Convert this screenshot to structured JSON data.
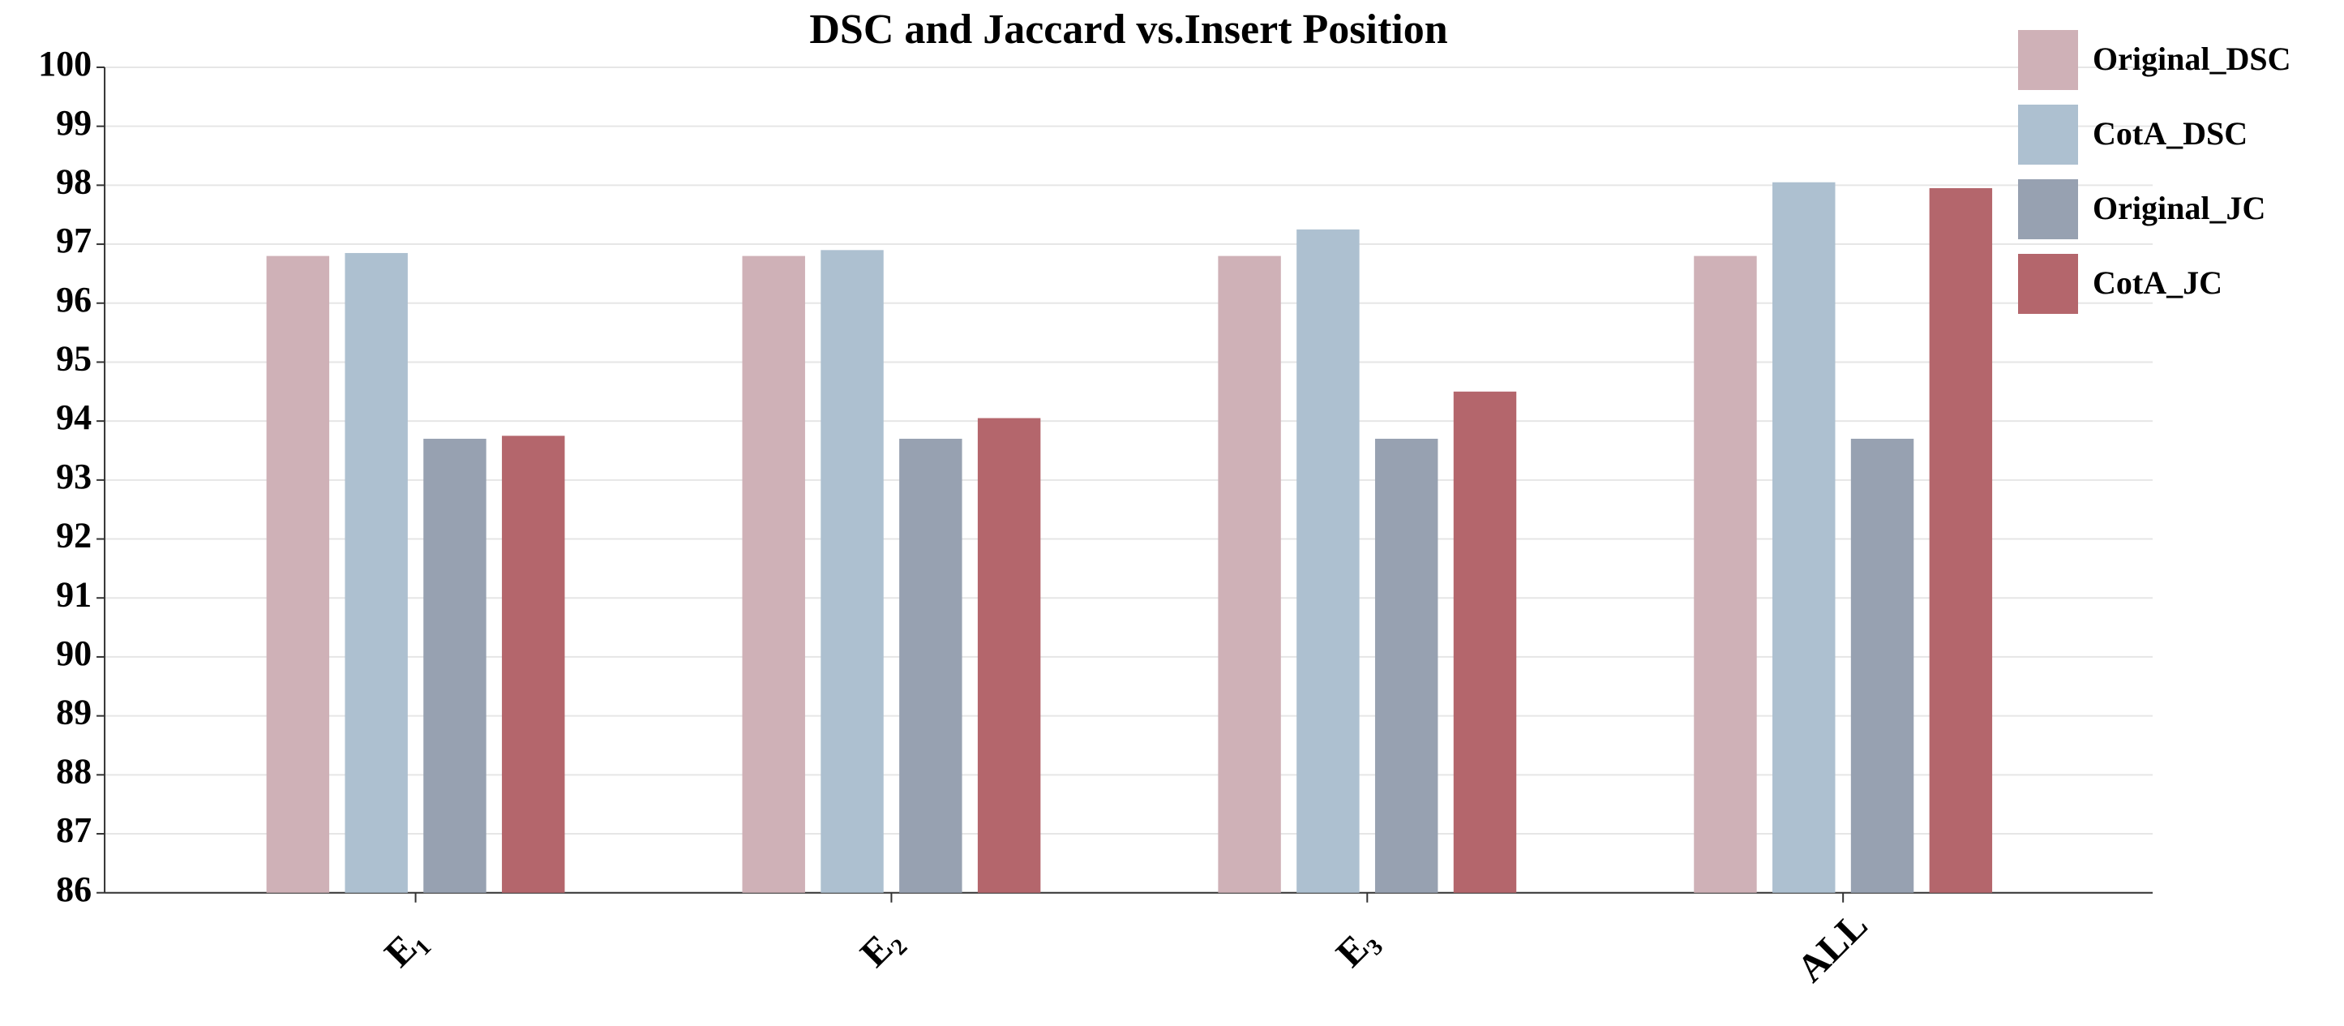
{
  "chart_data": {
    "type": "bar",
    "title": "DSC and Jaccard vs.Insert Position",
    "categories": [
      "E₁",
      "E₂",
      "E₃",
      "ALL"
    ],
    "series": [
      {
        "name": "Original_DSC",
        "color": "#cfb1b7",
        "values": [
          96.8,
          96.8,
          96.8,
          96.8
        ]
      },
      {
        "name": "CotA_DSC",
        "color": "#adc0d0",
        "values": [
          96.85,
          96.9,
          97.25,
          98.05
        ]
      },
      {
        "name": "Original_JC",
        "color": "#97a1b1",
        "values": [
          93.7,
          93.7,
          93.7,
          93.7
        ]
      },
      {
        "name": "CotA_JC",
        "color": "#b4666c",
        "values": [
          93.75,
          94.05,
          94.5,
          97.95
        ]
      }
    ],
    "ylim": [
      86,
      100
    ],
    "yticks": [
      86,
      87,
      88,
      89,
      90,
      91,
      92,
      93,
      94,
      95,
      96,
      97,
      98,
      99,
      100
    ],
    "grid": true,
    "legend": "top-right"
  }
}
